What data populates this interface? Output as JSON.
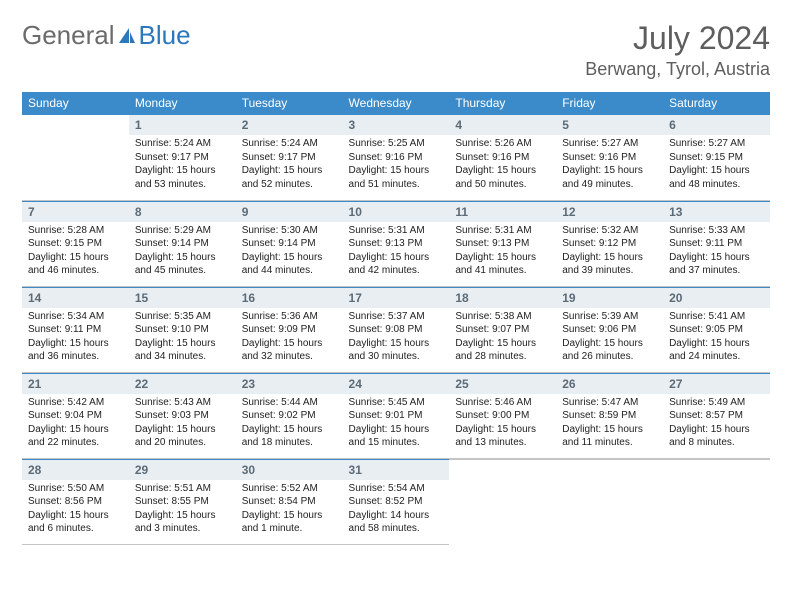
{
  "logo": {
    "part1": "General",
    "part2": "Blue"
  },
  "title": "July 2024",
  "location": "Berwang, Tyrol, Austria",
  "colors": {
    "header_bg": "#3b8bca",
    "header_text": "#ffffff",
    "daynum_bg": "#e9eef2",
    "daynum_text": "#5c6b78",
    "border": "#c4c4c4",
    "logo_gray": "#6b6b6b",
    "logo_blue": "#2d77bb"
  },
  "day_headers": [
    "Sunday",
    "Monday",
    "Tuesday",
    "Wednesday",
    "Thursday",
    "Friday",
    "Saturday"
  ],
  "weeks": [
    [
      null,
      {
        "n": "1",
        "sr": "5:24 AM",
        "ss": "9:17 PM",
        "dl": "15 hours and 53 minutes."
      },
      {
        "n": "2",
        "sr": "5:24 AM",
        "ss": "9:17 PM",
        "dl": "15 hours and 52 minutes."
      },
      {
        "n": "3",
        "sr": "5:25 AM",
        "ss": "9:16 PM",
        "dl": "15 hours and 51 minutes."
      },
      {
        "n": "4",
        "sr": "5:26 AM",
        "ss": "9:16 PM",
        "dl": "15 hours and 50 minutes."
      },
      {
        "n": "5",
        "sr": "5:27 AM",
        "ss": "9:16 PM",
        "dl": "15 hours and 49 minutes."
      },
      {
        "n": "6",
        "sr": "5:27 AM",
        "ss": "9:15 PM",
        "dl": "15 hours and 48 minutes."
      }
    ],
    [
      {
        "n": "7",
        "sr": "5:28 AM",
        "ss": "9:15 PM",
        "dl": "15 hours and 46 minutes."
      },
      {
        "n": "8",
        "sr": "5:29 AM",
        "ss": "9:14 PM",
        "dl": "15 hours and 45 minutes."
      },
      {
        "n": "9",
        "sr": "5:30 AM",
        "ss": "9:14 PM",
        "dl": "15 hours and 44 minutes."
      },
      {
        "n": "10",
        "sr": "5:31 AM",
        "ss": "9:13 PM",
        "dl": "15 hours and 42 minutes."
      },
      {
        "n": "11",
        "sr": "5:31 AM",
        "ss": "9:13 PM",
        "dl": "15 hours and 41 minutes."
      },
      {
        "n": "12",
        "sr": "5:32 AM",
        "ss": "9:12 PM",
        "dl": "15 hours and 39 minutes."
      },
      {
        "n": "13",
        "sr": "5:33 AM",
        "ss": "9:11 PM",
        "dl": "15 hours and 37 minutes."
      }
    ],
    [
      {
        "n": "14",
        "sr": "5:34 AM",
        "ss": "9:11 PM",
        "dl": "15 hours and 36 minutes."
      },
      {
        "n": "15",
        "sr": "5:35 AM",
        "ss": "9:10 PM",
        "dl": "15 hours and 34 minutes."
      },
      {
        "n": "16",
        "sr": "5:36 AM",
        "ss": "9:09 PM",
        "dl": "15 hours and 32 minutes."
      },
      {
        "n": "17",
        "sr": "5:37 AM",
        "ss": "9:08 PM",
        "dl": "15 hours and 30 minutes."
      },
      {
        "n": "18",
        "sr": "5:38 AM",
        "ss": "9:07 PM",
        "dl": "15 hours and 28 minutes."
      },
      {
        "n": "19",
        "sr": "5:39 AM",
        "ss": "9:06 PM",
        "dl": "15 hours and 26 minutes."
      },
      {
        "n": "20",
        "sr": "5:41 AM",
        "ss": "9:05 PM",
        "dl": "15 hours and 24 minutes."
      }
    ],
    [
      {
        "n": "21",
        "sr": "5:42 AM",
        "ss": "9:04 PM",
        "dl": "15 hours and 22 minutes."
      },
      {
        "n": "22",
        "sr": "5:43 AM",
        "ss": "9:03 PM",
        "dl": "15 hours and 20 minutes."
      },
      {
        "n": "23",
        "sr": "5:44 AM",
        "ss": "9:02 PM",
        "dl": "15 hours and 18 minutes."
      },
      {
        "n": "24",
        "sr": "5:45 AM",
        "ss": "9:01 PM",
        "dl": "15 hours and 15 minutes."
      },
      {
        "n": "25",
        "sr": "5:46 AM",
        "ss": "9:00 PM",
        "dl": "15 hours and 13 minutes."
      },
      {
        "n": "26",
        "sr": "5:47 AM",
        "ss": "8:59 PM",
        "dl": "15 hours and 11 minutes."
      },
      {
        "n": "27",
        "sr": "5:49 AM",
        "ss": "8:57 PM",
        "dl": "15 hours and 8 minutes."
      }
    ],
    [
      {
        "n": "28",
        "sr": "5:50 AM",
        "ss": "8:56 PM",
        "dl": "15 hours and 6 minutes."
      },
      {
        "n": "29",
        "sr": "5:51 AM",
        "ss": "8:55 PM",
        "dl": "15 hours and 3 minutes."
      },
      {
        "n": "30",
        "sr": "5:52 AM",
        "ss": "8:54 PM",
        "dl": "15 hours and 1 minute."
      },
      {
        "n": "31",
        "sr": "5:54 AM",
        "ss": "8:52 PM",
        "dl": "14 hours and 58 minutes."
      },
      null,
      null,
      null
    ]
  ],
  "labels": {
    "sunrise": "Sunrise:",
    "sunset": "Sunset:",
    "daylight": "Daylight:"
  }
}
